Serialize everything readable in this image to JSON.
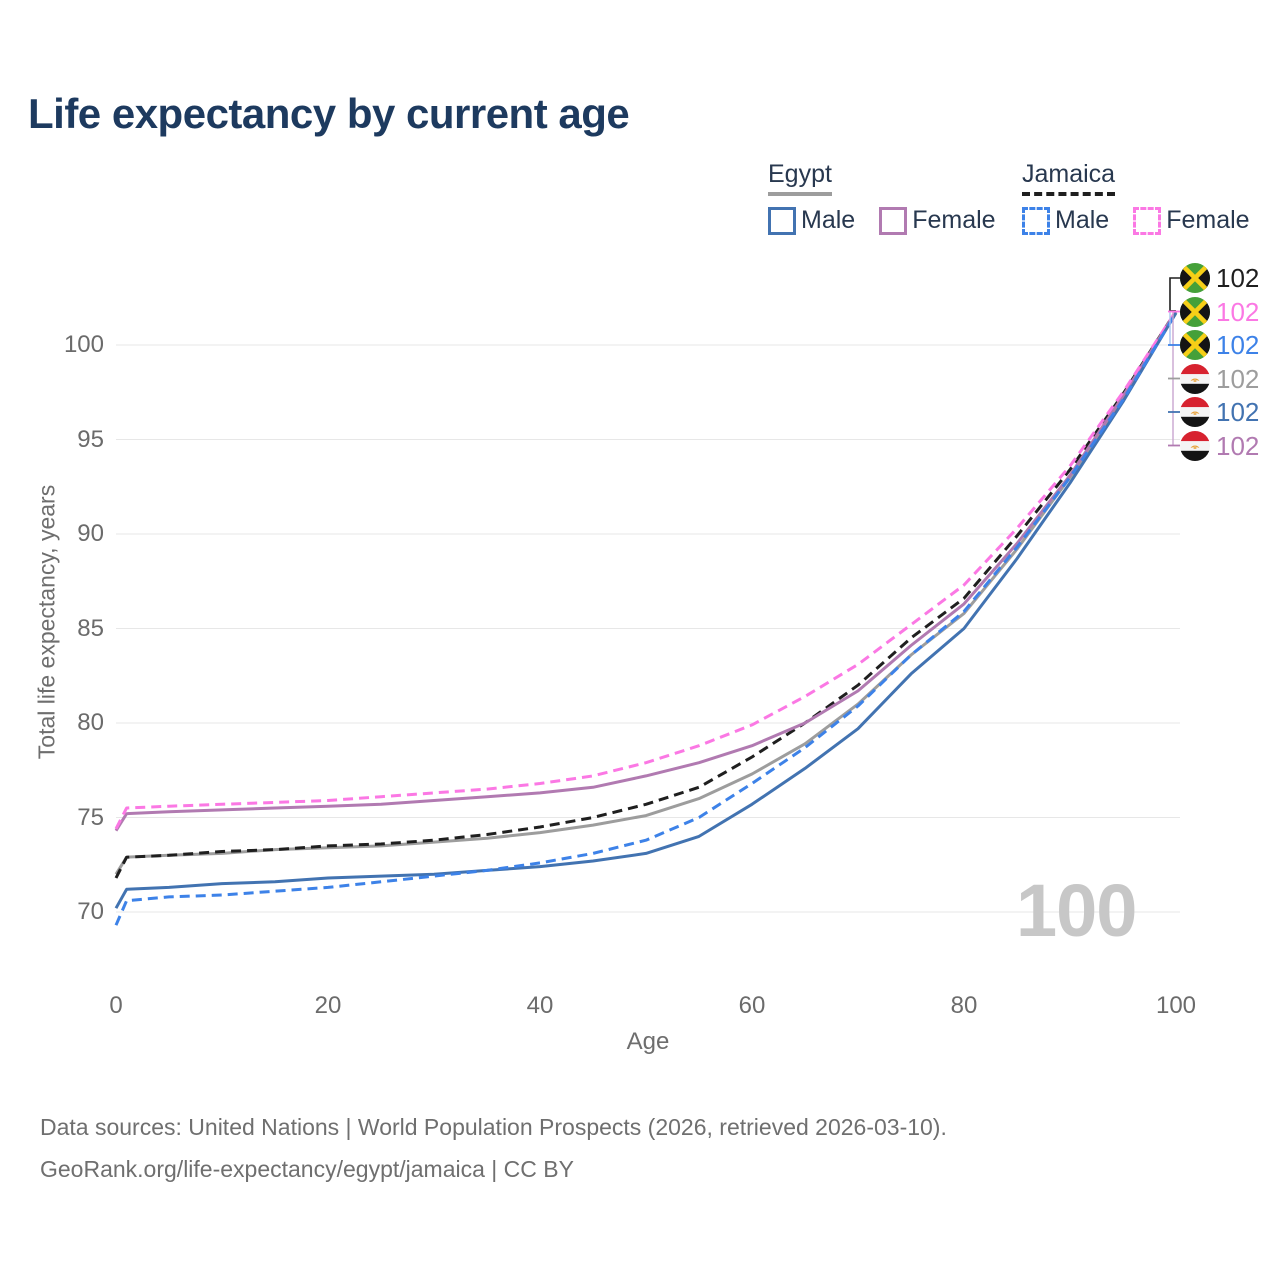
{
  "title": "Life expectancy by current age",
  "legend": {
    "egypt": {
      "label": "Egypt",
      "underline_color": "#9d9d9d",
      "underline_style": "solid",
      "male_label": "Male",
      "female_label": "Female",
      "male_color": "#4273b1",
      "female_color": "#b17ab1"
    },
    "jamaica": {
      "label": "Jamaica",
      "underline_color": "#1f1f1f",
      "underline_style": "dashed",
      "male_label": "Male",
      "female_label": "Female",
      "male_color": "#3d82e8",
      "female_color": "#fb78e4"
    }
  },
  "y_axis": {
    "title": "Total life expectancy, years",
    "ticks": [
      70,
      75,
      80,
      85,
      90,
      95,
      100
    ]
  },
  "x_axis": {
    "title": "Age",
    "ticks": [
      0,
      20,
      40,
      60,
      80,
      100
    ]
  },
  "watermark": "100",
  "chart_data": {
    "type": "line",
    "title": "Life expectancy by current age",
    "xlabel": "Age",
    "ylabel": "Total life expectancy, years",
    "xlim": [
      0,
      100
    ],
    "ylim": [
      70,
      102
    ],
    "grid": "horizontal",
    "legend_position": "top-right",
    "x": [
      0,
      1,
      5,
      10,
      15,
      20,
      25,
      30,
      35,
      40,
      45,
      50,
      55,
      60,
      65,
      70,
      75,
      80,
      85,
      90,
      95,
      100
    ],
    "series": [
      {
        "id": "egypt_both",
        "country": "Egypt",
        "sex": "both",
        "color": "#9d9d9d",
        "dashed": false,
        "values": [
          72.0,
          72.9,
          73.0,
          73.1,
          73.3,
          73.4,
          73.5,
          73.7,
          73.9,
          74.2,
          74.6,
          75.1,
          76.0,
          77.3,
          78.9,
          81.0,
          83.6,
          85.8,
          89.2,
          93.0,
          97.2,
          101.7
        ]
      },
      {
        "id": "jamaica_both",
        "country": "Jamaica",
        "sex": "both",
        "color": "#1f1f1f",
        "dashed": true,
        "values": [
          71.8,
          72.9,
          73.0,
          73.2,
          73.3,
          73.5,
          73.6,
          73.8,
          74.1,
          74.5,
          75.0,
          75.7,
          76.6,
          78.2,
          80.0,
          82.0,
          84.5,
          86.6,
          89.9,
          93.4,
          97.4,
          101.8
        ]
      },
      {
        "id": "egypt_female",
        "country": "Egypt",
        "sex": "female",
        "color": "#b17ab1",
        "dashed": false,
        "values": [
          74.3,
          75.2,
          75.3,
          75.4,
          75.5,
          75.6,
          75.7,
          75.9,
          76.1,
          76.3,
          76.6,
          77.2,
          77.9,
          78.8,
          80.0,
          81.7,
          84.1,
          86.3,
          89.5,
          93.1,
          97.3,
          101.8
        ]
      },
      {
        "id": "jamaica_female",
        "country": "Jamaica",
        "sex": "female",
        "color": "#fb78e4",
        "dashed": true,
        "values": [
          74.4,
          75.5,
          75.6,
          75.7,
          75.8,
          75.9,
          76.1,
          76.3,
          76.5,
          76.8,
          77.2,
          77.9,
          78.8,
          79.9,
          81.4,
          83.1,
          85.2,
          87.3,
          90.3,
          93.6,
          97.5,
          101.8
        ]
      },
      {
        "id": "egypt_male",
        "country": "Egypt",
        "sex": "male",
        "color": "#4273b1",
        "dashed": false,
        "values": [
          70.2,
          71.2,
          71.3,
          71.5,
          71.6,
          71.8,
          71.9,
          72.0,
          72.2,
          72.4,
          72.7,
          73.1,
          74.0,
          75.7,
          77.6,
          79.7,
          82.6,
          85.0,
          88.7,
          92.7,
          97.0,
          101.7
        ]
      },
      {
        "id": "jamaica_male",
        "country": "Jamaica",
        "sex": "male",
        "color": "#3d82e8",
        "dashed": true,
        "values": [
          69.3,
          70.6,
          70.8,
          70.9,
          71.1,
          71.3,
          71.6,
          71.9,
          72.2,
          72.6,
          73.1,
          73.8,
          75.0,
          76.8,
          78.7,
          80.9,
          83.6,
          85.9,
          89.3,
          93.0,
          97.1,
          101.7
        ]
      }
    ]
  },
  "end_labels": [
    {
      "country": "jamaica",
      "series": "jamaica_both",
      "value": "102",
      "color": "#1f1f1f"
    },
    {
      "country": "jamaica",
      "series": "jamaica_female",
      "value": "102",
      "color": "#fb78e4"
    },
    {
      "country": "jamaica",
      "series": "jamaica_male",
      "value": "102",
      "color": "#3d82e8"
    },
    {
      "country": "egypt",
      "series": "egypt_both",
      "value": "102",
      "color": "#9d9d9d"
    },
    {
      "country": "egypt",
      "series": "egypt_male",
      "value": "102",
      "color": "#4273b1"
    },
    {
      "country": "egypt",
      "series": "egypt_female",
      "value": "102",
      "color": "#b17ab1"
    }
  ],
  "footer": {
    "line1": "Data sources: United Nations | World Population Prospects (2026, retrieved 2026-03-10).",
    "line2": "GeoRank.org/life-expectancy/egypt/jamaica | CC BY"
  }
}
